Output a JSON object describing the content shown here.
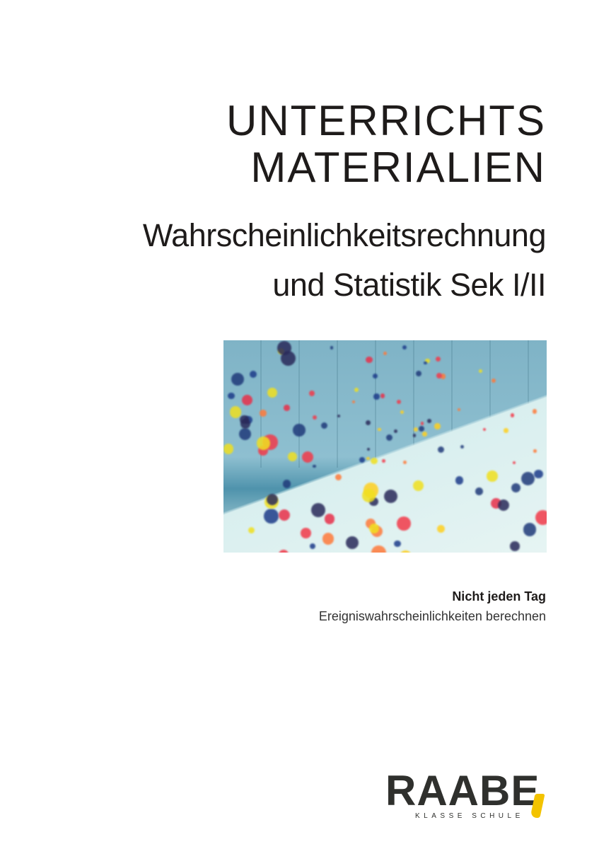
{
  "series": {
    "line1": "UNTERRICHTS",
    "line2": "MATERIALIEN"
  },
  "subject": {
    "line1": "Wahrscheinlichkeitsrechnung",
    "line2": "und Statistik Sek I/II"
  },
  "lesson": {
    "title": "Nicht jeden Tag",
    "subtitle": "Ereigniswahrscheinlichkeiten berechnen"
  },
  "logo": {
    "wordmark": "RAABE",
    "tagline": "KLASSE SCHULE",
    "accent_color": "#f3c300"
  }
}
